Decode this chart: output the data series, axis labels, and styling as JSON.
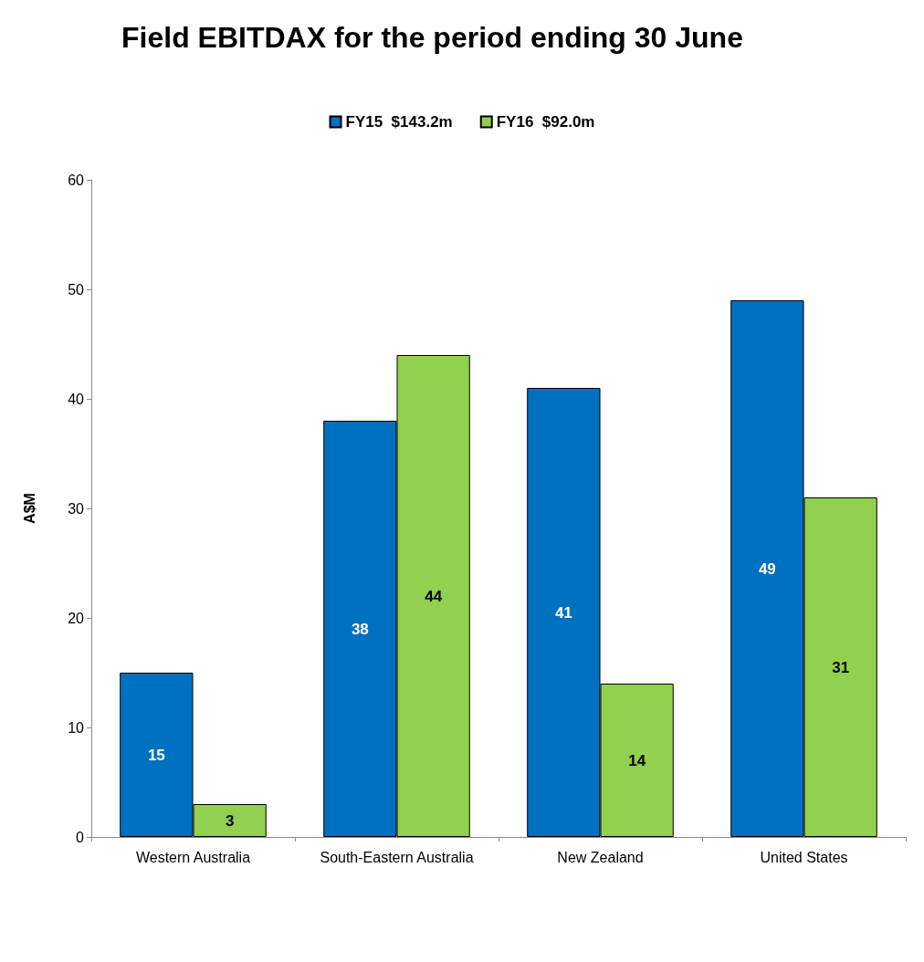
{
  "chart_data": {
    "type": "bar",
    "title": "Field EBITDAX for the period ending 30 June",
    "ylabel": "A$M",
    "categories": [
      "Western Australia",
      "South-Eastern Australia",
      "New Zealand",
      "United States"
    ],
    "series": [
      {
        "name": "FY15  $143.2m",
        "color": "#0070c0",
        "values": [
          15,
          38,
          41,
          49
        ]
      },
      {
        "name": "FY16  $92.0m",
        "color": "#92d050",
        "values": [
          3,
          44,
          14,
          31
        ]
      }
    ],
    "ylim": [
      0,
      60
    ],
    "yticks": [
      0,
      10,
      20,
      30,
      40,
      50,
      60
    ],
    "grid": false,
    "legend": "top",
    "data_labels": true
  }
}
